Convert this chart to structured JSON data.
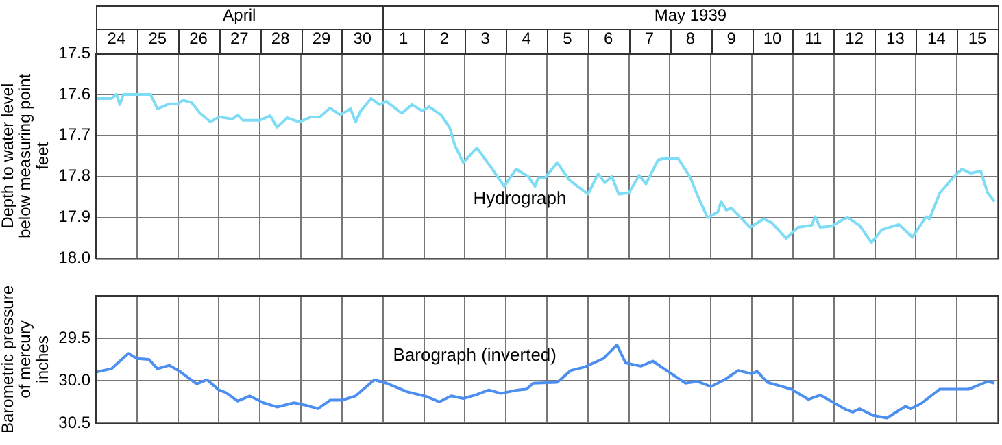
{
  "chart_data": [
    {
      "type": "line",
      "ylabel": "Depth to water level\nbelow measuring point\nfeet",
      "marker": "none",
      "grid": true,
      "xlim": [
        "1939-04-24T00:00",
        "1939-05-16T00:00"
      ],
      "xticks": [
        {
          "value": "1939-04-24T00:00",
          "label": null
        },
        {
          "value": "1939-04-24T12:00",
          "label": "24"
        },
        {
          "value": "1939-04-25T00:00",
          "label": null
        },
        {
          "value": "1939-04-25T12:00",
          "label": "25"
        },
        {
          "value": "1939-04-26T00:00",
          "label": null
        },
        {
          "value": "1939-04-26T12:00",
          "label": "26"
        },
        {
          "value": "1939-04-27T00:00",
          "label": null
        },
        {
          "value": "1939-04-27T12:00",
          "label": "27"
        },
        {
          "value": "1939-04-28T00:00",
          "label": null
        },
        {
          "value": "1939-04-28T12:00",
          "label": "28"
        },
        {
          "value": "1939-04-29T00:00",
          "label": null
        },
        {
          "value": "1939-04-29T12:00",
          "label": "29"
        },
        {
          "value": "1939-04-30T00:00",
          "label": null
        },
        {
          "value": "1939-04-30T12:00",
          "label": "30"
        },
        {
          "value": "1939-05-01T00:00",
          "label": null
        },
        {
          "value": "1939-05-01T12:00",
          "label": "1"
        },
        {
          "value": "1939-05-02T00:00",
          "label": null
        },
        {
          "value": "1939-05-02T12:00",
          "label": "2"
        },
        {
          "value": "1939-05-03T00:00",
          "label": null
        },
        {
          "value": "1939-05-03T12:00",
          "label": "3"
        },
        {
          "value": "1939-05-04T00:00",
          "label": null
        },
        {
          "value": "1939-05-04T12:00",
          "label": "4"
        },
        {
          "value": "1939-05-05T00:00",
          "label": null
        },
        {
          "value": "1939-05-05T12:00",
          "label": "5"
        },
        {
          "value": "1939-05-06T00:00",
          "label": null
        },
        {
          "value": "1939-05-06T12:00",
          "label": "6"
        },
        {
          "value": "1939-05-07T00:00",
          "label": null
        },
        {
          "value": "1939-05-07T12:00",
          "label": "7"
        },
        {
          "value": "1939-05-08T00:00",
          "label": null
        },
        {
          "value": "1939-05-08T12:00",
          "label": "8"
        },
        {
          "value": "1939-05-09T00:00",
          "label": null
        },
        {
          "value": "1939-05-09T12:00",
          "label": "9"
        },
        {
          "value": "1939-05-10T00:00",
          "label": null
        },
        {
          "value": "1939-05-10T12:00",
          "label": "10"
        },
        {
          "value": "1939-05-11T00:00",
          "label": null
        },
        {
          "value": "1939-05-11T12:00",
          "label": "11"
        },
        {
          "value": "1939-05-12T00:00",
          "label": null
        },
        {
          "value": "1939-05-12T12:00",
          "label": "12"
        },
        {
          "value": "1939-05-13T00:00",
          "label": null
        },
        {
          "value": "1939-05-13T12:00",
          "label": "13"
        },
        {
          "value": "1939-05-14T00:00",
          "label": null
        },
        {
          "value": "1939-05-14T12:00",
          "label": "14"
        },
        {
          "value": "1939-05-15T00:00",
          "label": null
        },
        {
          "value": "1939-05-15T12:00",
          "label": "15"
        },
        {
          "value": "1939-05-16T00:00",
          "label": null
        }
      ],
      "x2lim": [
        "1939-04-24T00:00",
        "1939-05-16T00:00"
      ],
      "x2ticks": [
        {
          "value": "1939-04-24T00:00",
          "label": null
        },
        {
          "value": "1939-04-27T12:00",
          "label": "April"
        },
        {
          "value": "1939-05-01T00:00",
          "label": null
        },
        {
          "value": "1939-05-08T12:00",
          "label": "May 1939"
        },
        {
          "value": "1939-05-16T00:00",
          "label": null
        }
      ],
      "ylim": [
        18.0,
        17.5
      ],
      "yticks": [
        {
          "value": 17.5,
          "label": "17.5"
        },
        17.6,
        17.7,
        17.8,
        17.9,
        {
          "value": 18.0,
          "label": "18.0"
        }
      ],
      "x": [
        "1939-04-24T00:00",
        "1939-04-24T09:00",
        "1939-04-24T12:00",
        "1939-04-24T14:00",
        "1939-04-24T16:00",
        "1939-04-25T03:00",
        "1939-04-25T08:00",
        "1939-04-25T12:00",
        "1939-04-25T19:00",
        "1939-04-26T00:00",
        "1939-04-26T03:00",
        "1939-04-26T08:00",
        "1939-04-26T13:00",
        "1939-04-26T19:00",
        "1939-04-27T00:00",
        "1939-04-27T08:00",
        "1939-04-27T11:00",
        "1939-04-27T14:00",
        "1939-04-28T00:00",
        "1939-04-28T06:00",
        "1939-04-28T10:00",
        "1939-04-28T16:00",
        "1939-04-28T23:00",
        "1939-04-29T06:00",
        "1939-04-29T11:00",
        "1939-04-29T17:00",
        "1939-04-29T23:00",
        "1939-04-30T05:00",
        "1939-04-30T08:00",
        "1939-04-30T11:00",
        "1939-04-30T17:00",
        "1939-04-30T22:00",
        "1939-05-01T02:00",
        "1939-05-01T11:00",
        "1939-05-01T17:00",
        "1939-05-01T23:00",
        "1939-05-02T03:00",
        "1939-05-02T10:00",
        "1939-05-02T15:00",
        "1939-05-02T18:00",
        "1939-05-02T23:00",
        "1939-05-03T07:00",
        "1939-05-03T15:00",
        "1939-05-03T23:00",
        "1939-05-04T06:00",
        "1939-05-04T13:00",
        "1939-05-04T17:00",
        "1939-05-04T19:00",
        "1939-05-04T23:00",
        "1939-05-05T06:00",
        "1939-05-05T13:00",
        "1939-05-06T00:00",
        "1939-05-06T06:00",
        "1939-05-06T10:00",
        "1939-05-06T14:00",
        "1939-05-06T18:00",
        "1939-05-07T00:00",
        "1939-05-07T06:00",
        "1939-05-07T10:00",
        "1939-05-07T17:00",
        "1939-05-07T22:00",
        "1939-05-08T05:00",
        "1939-05-08T12:00",
        "1939-05-08T16:00",
        "1939-05-08T22:00",
        "1939-05-09T04:00",
        "1939-05-09T06:00",
        "1939-05-09T09:00",
        "1939-05-09T12:00",
        "1939-05-09T23:00",
        "1939-05-10T07:00",
        "1939-05-10T12:00",
        "1939-05-10T20:00",
        "1939-05-11T03:00",
        "1939-05-11T11:00",
        "1939-05-11T13:00",
        "1939-05-11T16:00",
        "1939-05-11T23:00",
        "1939-05-12T04:00",
        "1939-05-12T08:00",
        "1939-05-12T15:00",
        "1939-05-12T22:00",
        "1939-05-13T04:00",
        "1939-05-13T14:00",
        "1939-05-13T22:00",
        "1939-05-14T06:00",
        "1939-05-14T08:00",
        "1939-05-14T14:00",
        "1939-05-14T23:00",
        "1939-05-15T03:00",
        "1939-05-15T08:00",
        "1939-05-15T14:00",
        "1939-05-15T18:00",
        "1939-05-15T22:00"
      ],
      "series": [
        {
          "name": "Hydrograph",
          "color": "#7fdcf5",
          "values": [
            17.61,
            17.61,
            17.6,
            17.625,
            17.6,
            17.6,
            17.6,
            17.635,
            17.623,
            17.623,
            17.614,
            17.62,
            17.646,
            17.667,
            17.655,
            17.66,
            17.65,
            17.663,
            17.663,
            17.652,
            17.68,
            17.657,
            17.667,
            17.655,
            17.655,
            17.633,
            17.65,
            17.635,
            17.667,
            17.64,
            17.61,
            17.625,
            17.617,
            17.646,
            17.625,
            17.64,
            17.63,
            17.65,
            17.68,
            17.723,
            17.766,
            17.73,
            17.776,
            17.824,
            17.782,
            17.8,
            17.824,
            17.803,
            17.803,
            17.766,
            17.808,
            17.843,
            17.794,
            17.815,
            17.8,
            17.843,
            17.84,
            17.797,
            17.818,
            17.76,
            17.755,
            17.757,
            17.803,
            17.845,
            17.9,
            17.887,
            17.861,
            17.882,
            17.877,
            17.924,
            17.903,
            17.914,
            17.951,
            17.924,
            17.919,
            17.898,
            17.924,
            17.921,
            17.908,
            17.9,
            17.919,
            17.961,
            17.93,
            17.917,
            17.948,
            17.898,
            17.903,
            17.84,
            17.797,
            17.782,
            17.792,
            17.787,
            17.84,
            17.861
          ]
        }
      ]
    },
    {
      "type": "line",
      "ylabel": "Barometric pressure\nof mercury\ninches",
      "marker": "none",
      "grid": true,
      "tick_labels": "y",
      "xlim": [
        "1939-04-24T00:00",
        "1939-05-16T00:00"
      ],
      "xticks": [
        {
          "value": "1939-04-24T00:00",
          "label": null
        },
        {
          "value": "1939-04-25T00:00",
          "label": null
        },
        {
          "value": "1939-04-26T00:00",
          "label": null
        },
        {
          "value": "1939-04-27T00:00",
          "label": null
        },
        {
          "value": "1939-04-28T00:00",
          "label": null
        },
        {
          "value": "1939-04-29T00:00",
          "label": null
        },
        {
          "value": "1939-04-30T00:00",
          "label": null
        },
        {
          "value": "1939-05-01T00:00",
          "label": null
        },
        {
          "value": "1939-05-02T00:00",
          "label": null
        },
        {
          "value": "1939-05-03T00:00",
          "label": null
        },
        {
          "value": "1939-05-04T00:00",
          "label": null
        },
        {
          "value": "1939-05-05T00:00",
          "label": null
        },
        {
          "value": "1939-05-06T00:00",
          "label": null
        },
        {
          "value": "1939-05-07T00:00",
          "label": null
        },
        {
          "value": "1939-05-08T00:00",
          "label": null
        },
        {
          "value": "1939-05-09T00:00",
          "label": null
        },
        {
          "value": "1939-05-10T00:00",
          "label": null
        },
        {
          "value": "1939-05-11T00:00",
          "label": null
        },
        {
          "value": "1939-05-12T00:00",
          "label": null
        },
        {
          "value": "1939-05-13T00:00",
          "label": null
        },
        {
          "value": "1939-05-14T00:00",
          "label": null
        },
        {
          "value": "1939-05-15T00:00",
          "label": null
        },
        {
          "value": "1939-05-16T00:00",
          "label": null
        }
      ],
      "ylim": [
        30.5,
        29.0
      ],
      "yticks": [
        {
          "value": 29.0,
          "label": null
        },
        29.5,
        {
          "value": 30.0,
          "label": "30.0"
        },
        30.5
      ],
      "x": [
        "1939-04-24T00:00",
        "1939-04-24T09:00",
        "1939-04-24T19:00",
        "1939-04-25T00:00",
        "1939-04-25T07:00",
        "1939-04-25T12:00",
        "1939-04-25T19:00",
        "1939-04-26T01:00",
        "1939-04-26T11:00",
        "1939-04-26T17:00",
        "1939-04-27T00:00",
        "1939-04-27T04:00",
        "1939-04-27T11:00",
        "1939-04-27T18:00",
        "1939-04-28T02:00",
        "1939-04-28T10:00",
        "1939-04-28T20:00",
        "1939-04-29T03:00",
        "1939-04-29T10:00",
        "1939-04-29T17:00",
        "1939-04-30T00:00",
        "1939-04-30T08:00",
        "1939-04-30T19:00",
        "1939-05-01T02:00",
        "1939-05-01T14:00",
        "1939-05-02T02:00",
        "1939-05-02T09:00",
        "1939-05-02T16:00",
        "1939-05-02T23:00",
        "1939-05-03T06:00",
        "1939-05-03T14:00",
        "1939-05-03T21:00",
        "1939-05-04T07:00",
        "1939-05-04T12:00",
        "1939-05-04T16:00",
        "1939-05-05T06:00",
        "1939-05-05T14:00",
        "1939-05-05T22:00",
        "1939-05-06T09:00",
        "1939-05-06T17:00",
        "1939-05-06T22:00",
        "1939-05-07T07:00",
        "1939-05-07T14:00",
        "1939-05-08T01:00",
        "1939-05-08T09:00",
        "1939-05-08T16:00",
        "1939-05-09T00:00",
        "1939-05-09T08:00",
        "1939-05-09T16:00",
        "1939-05-10T00:00",
        "1939-05-10T03:00",
        "1939-05-10T09:00",
        "1939-05-10T23:00",
        "1939-05-11T09:00",
        "1939-05-11T16:00",
        "1939-05-12T00:00",
        "1939-05-12T07:00",
        "1939-05-12T11:00",
        "1939-05-12T15:00",
        "1939-05-12T23:00",
        "1939-05-13T07:00",
        "1939-05-13T18:00",
        "1939-05-13T21:00",
        "1939-05-14T03:00",
        "1939-05-14T14:00",
        "1939-05-15T07:00",
        "1939-05-15T18:00",
        "1939-05-15T22:00"
      ],
      "series": [
        {
          "name": "Barograph (inverted)",
          "color": "#4d8ff0",
          "values": [
            29.9,
            29.86,
            29.68,
            29.74,
            29.75,
            29.86,
            29.82,
            29.89,
            30.04,
            29.99,
            30.11,
            30.14,
            30.24,
            30.18,
            30.26,
            30.31,
            30.26,
            30.29,
            30.33,
            30.23,
            30.23,
            30.18,
            29.99,
            30.03,
            30.13,
            30.19,
            30.25,
            30.18,
            30.21,
            30.17,
            30.11,
            30.15,
            30.11,
            30.1,
            30.03,
            30.02,
            29.88,
            29.84,
            29.74,
            29.58,
            29.79,
            29.83,
            29.77,
            29.92,
            30.03,
            30.01,
            30.07,
            29.99,
            29.88,
            29.92,
            29.89,
            30.02,
            30.1,
            30.22,
            30.17,
            30.26,
            30.34,
            30.37,
            30.33,
            30.41,
            30.44,
            30.3,
            30.33,
            30.27,
            30.1,
            30.1,
            30.01,
            30.03
          ]
        }
      ]
    }
  ]
}
